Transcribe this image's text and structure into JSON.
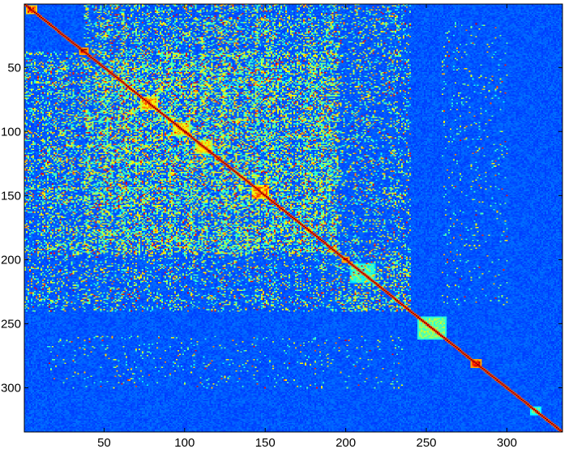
{
  "chart_data": {
    "type": "heatmap",
    "title": "",
    "xlabel": "",
    "ylabel": "",
    "n": 334,
    "xlim": [
      1,
      334
    ],
    "ylim": [
      1,
      334
    ],
    "x_ticks": [
      50,
      100,
      150,
      200,
      250,
      300
    ],
    "y_ticks": [
      50,
      100,
      150,
      200,
      250,
      300
    ],
    "x_tick_labels": [
      "50",
      "100",
      "150",
      "200",
      "250",
      "300"
    ],
    "y_tick_labels": [
      "50",
      "100",
      "150",
      "200",
      "250",
      "300"
    ],
    "y_axis_direction": "top-down",
    "colormap": "jet",
    "value_range": [
      0,
      1
    ],
    "diagonal_value": 1.0,
    "dense_regions": [
      {
        "rows": [
          38,
          195
        ],
        "cols": [
          38,
          195
        ],
        "density": 0.55
      },
      {
        "rows": [
          38,
          195
        ],
        "cols": [
          1,
          37
        ],
        "density": 0.35
      },
      {
        "rows": [
          1,
          37
        ],
        "cols": [
          38,
          195
        ],
        "density": 0.35
      },
      {
        "rows": [
          196,
          240
        ],
        "cols": [
          1,
          240
        ],
        "density": 0.22
      },
      {
        "rows": [
          1,
          240
        ],
        "cols": [
          196,
          240
        ],
        "density": 0.22
      },
      {
        "rows": [
          260,
          300
        ],
        "cols": [
          15,
          235
        ],
        "density": 0.08
      }
    ],
    "diagonal_blocks": [
      {
        "start": 2,
        "end": 8,
        "value": 0.9
      },
      {
        "start": 35,
        "end": 40,
        "value": 0.95
      },
      {
        "start": 73,
        "end": 83,
        "value": 0.75
      },
      {
        "start": 93,
        "end": 103,
        "value": 0.7
      },
      {
        "start": 107,
        "end": 117,
        "value": 0.7
      },
      {
        "start": 142,
        "end": 152,
        "value": 0.8
      },
      {
        "start": 198,
        "end": 202,
        "value": 0.9
      },
      {
        "start": 203,
        "end": 218,
        "value": 0.45
      },
      {
        "start": 245,
        "end": 262,
        "value": 0.55
      },
      {
        "start": 278,
        "end": 284,
        "value": 0.95
      },
      {
        "start": 315,
        "end": 321,
        "value": 0.5
      }
    ]
  },
  "colors": {
    "background": "#0000b8",
    "axes_frame": "#000000",
    "diagonal": "#800000",
    "colormap_stops": [
      "#00008f",
      "#0000ff",
      "#00ffff",
      "#ffff00",
      "#ff0000",
      "#800000"
    ]
  }
}
